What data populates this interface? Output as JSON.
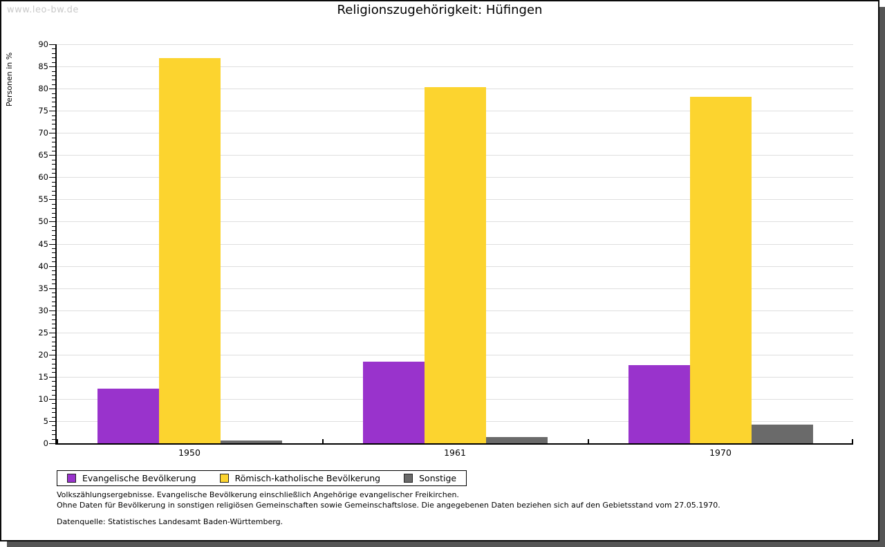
{
  "watermark": "www.leo-bw.de",
  "header": {
    "title": "Religionszugehörigkeit:  Hüfingen"
  },
  "chart_data": {
    "type": "bar",
    "title": "Religionszugehörigkeit: Hüfingen",
    "categories": [
      "1950",
      "1961",
      "1970"
    ],
    "series": [
      {
        "name": "Evangelische Bevölkerung",
        "color": "#9933CC",
        "values": [
          12.4,
          18.4,
          17.7
        ]
      },
      {
        "name": "Römisch-katholische Bevölkerung",
        "color": "#FCD42F",
        "values": [
          86.9,
          80.3,
          78.2
        ]
      },
      {
        "name": "Sonstige",
        "color": "#6A6A6A",
        "values": [
          0.7,
          1.4,
          4.2
        ]
      }
    ],
    "xlabel": "",
    "ylabel": "Personen in %",
    "ylim": [
      0,
      90
    ],
    "ytick_step": 5,
    "minor_tick_step": 1,
    "grid": true,
    "gridline_color": "#dedede",
    "legend_position": "bottom",
    "legend_swatch_border": "#222222"
  },
  "footnotes": [
    "Volkszählungsergebnisse. Evangelische Bevölkerung einschließlich Angehörige evangelischer Freikirchen.",
    "Ohne Daten für Bevölkerung in sonstigen religiösen Gemeinschaften sowie Gemeinschaftslose. Die angegebenen Daten beziehen sich auf den Gebietsstand vom 27.05.1970."
  ],
  "source": "Datenquelle: Statistisches Landesamt Baden-Württemberg.",
  "frame": {
    "border_color": "#0a0a0a",
    "shadow_color": "#555555"
  }
}
